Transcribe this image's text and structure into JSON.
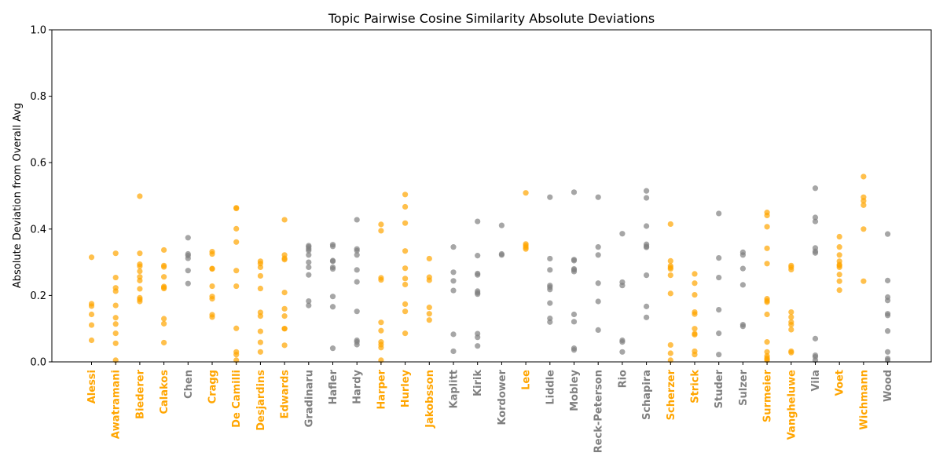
{
  "chart_data": {
    "type": "scatter",
    "title": "Topic Pairwise Cosine Similarity Absolute Deviations",
    "xlabel": "",
    "ylabel": "Absolute Deviation from Overall Avg",
    "ylim": [
      0,
      1.0
    ],
    "yticks": [
      "0.0",
      "0.2",
      "0.4",
      "0.6",
      "0.8",
      "1.0"
    ],
    "grid": false,
    "colors": {
      "highlight": "#ffa500",
      "normal": "#808080"
    },
    "categories": [
      "Alessi",
      "Awatramani",
      "Biederer",
      "Calakos",
      "Chen",
      "Cragg",
      "De Camilli",
      "Desjardins",
      "Edwards",
      "Gradinaru",
      "Hafler",
      "Hardy",
      "Harper",
      "Hurley",
      "Jakobsson",
      "Kaplitt",
      "Kirik",
      "Kordower",
      "Lee",
      "Liddle",
      "Mobley",
      "Reck-Peterson",
      "Rio",
      "Schapira",
      "Scherzer",
      "Strick",
      "Studer",
      "Sulzer",
      "Surmeier",
      "Vangheluwe",
      "Vila",
      "Voet",
      "Wichmann",
      "Wood"
    ],
    "highlighted": [
      true,
      true,
      true,
      true,
      false,
      true,
      true,
      true,
      true,
      false,
      false,
      false,
      true,
      true,
      true,
      false,
      false,
      false,
      true,
      false,
      false,
      false,
      false,
      false,
      true,
      true,
      false,
      false,
      true,
      true,
      false,
      true,
      true,
      false
    ],
    "values": [
      [
        0.315,
        0.175,
        0.168,
        0.143,
        0.111,
        0.065
      ],
      [
        0.327,
        0.254,
        0.223,
        0.213,
        0.17,
        0.133,
        0.114,
        0.086,
        0.056,
        0.005
      ],
      [
        0.499,
        0.327,
        0.294,
        0.288,
        0.273,
        0.256,
        0.245,
        0.22,
        0.193,
        0.188,
        0.182
      ],
      [
        0.337,
        0.29,
        0.286,
        0.256,
        0.227,
        0.224,
        0.221,
        0.13,
        0.115,
        0.058
      ],
      [
        0.374,
        0.325,
        0.32,
        0.312,
        0.275,
        0.236
      ],
      [
        0.332,
        0.325,
        0.281,
        0.28,
        0.228,
        0.197,
        0.19,
        0.142,
        0.135
      ],
      [
        0.464,
        0.462,
        0.401,
        0.361,
        0.275,
        0.228,
        0.101,
        0.03,
        0.022,
        0.005
      ],
      [
        0.303,
        0.296,
        0.285,
        0.259,
        0.221,
        0.149,
        0.138,
        0.092,
        0.059,
        0.03
      ],
      [
        0.428,
        0.322,
        0.312,
        0.308,
        0.209,
        0.16,
        0.138,
        0.1,
        0.1,
        0.05
      ],
      [
        0.35,
        0.346,
        0.34,
        0.335,
        0.322,
        0.3,
        0.285,
        0.262,
        0.183,
        0.17
      ],
      [
        0.353,
        0.348,
        0.305,
        0.303,
        0.285,
        0.28,
        0.197,
        0.166,
        0.041
      ],
      [
        0.428,
        0.34,
        0.335,
        0.322,
        0.277,
        0.241,
        0.152,
        0.065,
        0.06,
        0.052
      ],
      [
        0.414,
        0.395,
        0.253,
        0.247,
        0.119,
        0.094,
        0.06,
        0.052,
        0.043,
        0.005
      ],
      [
        0.504,
        0.467,
        0.418,
        0.334,
        0.282,
        0.251,
        0.233,
        0.174,
        0.152,
        0.086
      ],
      [
        0.311,
        0.255,
        0.246,
        0.164,
        0.145,
        0.126
      ],
      [
        0.346,
        0.27,
        0.244,
        0.215,
        0.083,
        0.032
      ],
      [
        0.423,
        0.32,
        0.266,
        0.262,
        0.213,
        0.208,
        0.204,
        0.085,
        0.074,
        0.048
      ],
      [
        0.411,
        0.325,
        0.322
      ],
      [
        0.509,
        0.355,
        0.35,
        0.345,
        0.34
      ],
      [
        0.496,
        0.311,
        0.277,
        0.23,
        0.225,
        0.218,
        0.177,
        0.131,
        0.12
      ],
      [
        0.511,
        0.308,
        0.305,
        0.28,
        0.277,
        0.272,
        0.143,
        0.121,
        0.041,
        0.036
      ],
      [
        0.496,
        0.346,
        0.322,
        0.237,
        0.182,
        0.096
      ],
      [
        0.386,
        0.24,
        0.23,
        0.065,
        0.06,
        0.03
      ],
      [
        0.515,
        0.494,
        0.409,
        0.354,
        0.348,
        0.345,
        0.261,
        0.167,
        0.134
      ],
      [
        0.415,
        0.304,
        0.289,
        0.284,
        0.28,
        0.261,
        0.206,
        0.051,
        0.026,
        0.005
      ],
      [
        0.265,
        0.237,
        0.202,
        0.15,
        0.144,
        0.1,
        0.085,
        0.082,
        0.032,
        0.022
      ],
      [
        0.447,
        0.313,
        0.254,
        0.157,
        0.086,
        0.022
      ],
      [
        0.33,
        0.322,
        0.281,
        0.232,
        0.112,
        0.107
      ],
      [
        0.45,
        0.441,
        0.407,
        0.342,
        0.296,
        0.19,
        0.184,
        0.18,
        0.143,
        0.06,
        0.03,
        0.018,
        0.012,
        0.008,
        0.005
      ],
      [
        0.29,
        0.285,
        0.278,
        0.15,
        0.135,
        0.12,
        0.112,
        0.097,
        0.032,
        0.028
      ],
      [
        0.523,
        0.435,
        0.423,
        0.343,
        0.333,
        0.328,
        0.07,
        0.02,
        0.015,
        0.005
      ],
      [
        0.377,
        0.346,
        0.322,
        0.303,
        0.293,
        0.29,
        0.285,
        0.263,
        0.243,
        0.216
      ],
      [
        0.558,
        0.496,
        0.485,
        0.472,
        0.4,
        0.243
      ],
      [
        0.385,
        0.245,
        0.195,
        0.185,
        0.145,
        0.14,
        0.093,
        0.03,
        0.01,
        0.005
      ]
    ]
  }
}
